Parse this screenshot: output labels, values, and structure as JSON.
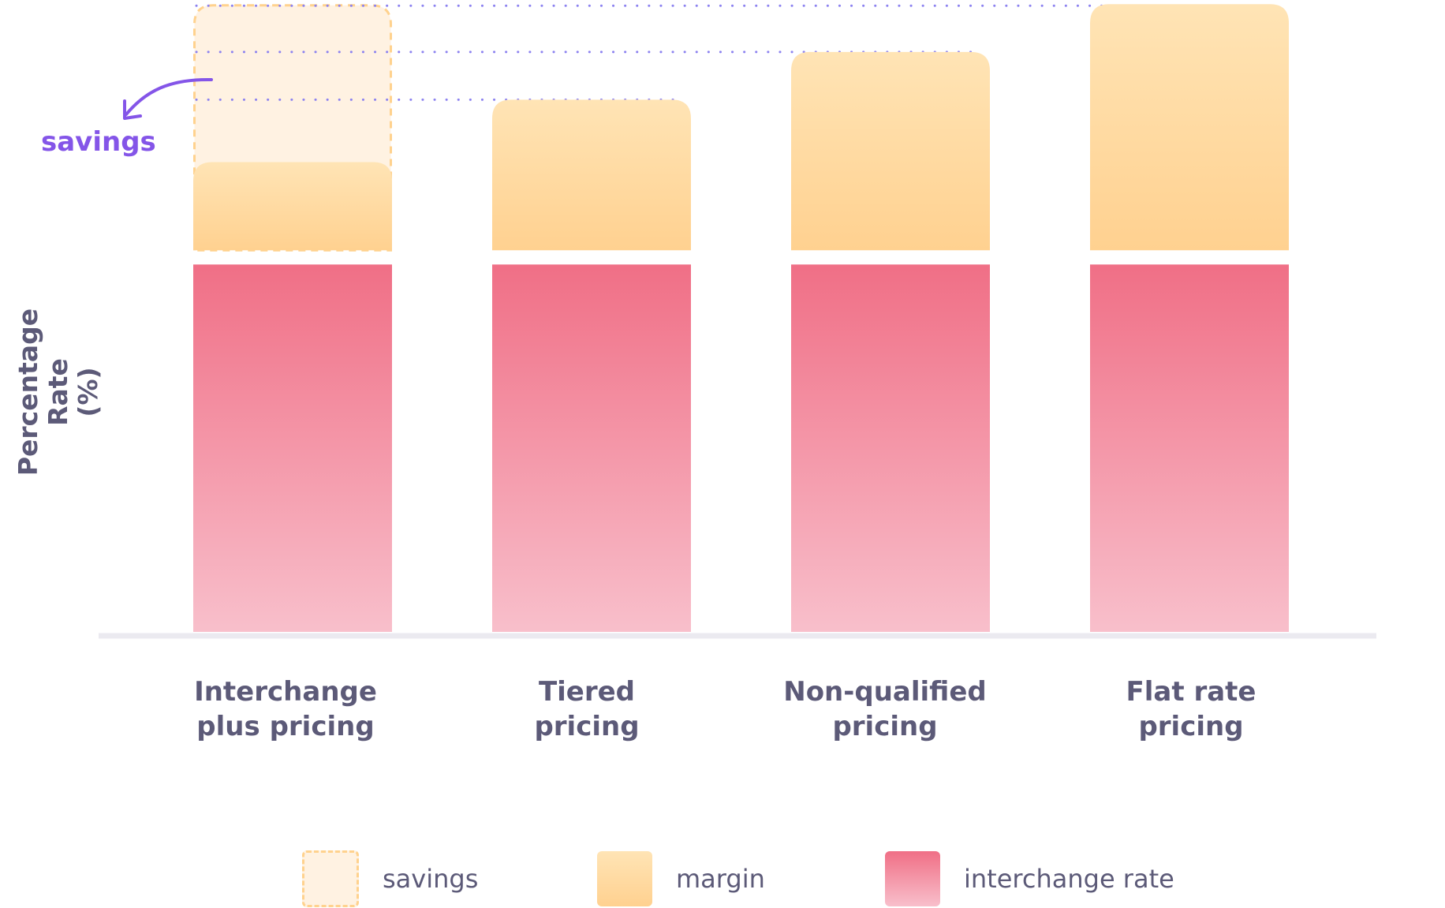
{
  "chart_data": {
    "type": "bar",
    "stacked": true,
    "title": "",
    "xlabel": "",
    "ylabel_lines": [
      "Percentage Rate",
      "(%)"
    ],
    "categories": [
      [
        "Interchange",
        "plus pricing"
      ],
      [
        "Tiered",
        "pricing"
      ],
      [
        "Non-qualified",
        "pricing"
      ],
      [
        "Flat rate",
        "pricing"
      ]
    ],
    "series": [
      {
        "name": "interchange rate",
        "values": [
          100,
          100,
          100,
          100
        ]
      },
      {
        "name": "margin",
        "values": [
          24,
          41,
          54,
          67
        ]
      },
      {
        "name": "savings",
        "values": [
          43,
          0,
          0,
          0
        ]
      }
    ],
    "ylim": [
      0,
      172
    ],
    "grid": false,
    "legend_placement": "bottom",
    "annotations": {
      "savings_label": "savings"
    },
    "colors": {
      "interchange_top": "#f06f86",
      "interchange_bottom": "#f8bfcb",
      "margin_top": "#ffe4b5",
      "margin_bottom": "#ffd190",
      "savings_fill": "#fff2e2",
      "savings_stroke": "#ffd28e",
      "guide_dots": "#8c82f0",
      "accent": "#8455e8",
      "text": "#5c5a78",
      "axis": "#ebeaf0"
    }
  },
  "legend": {
    "items": [
      {
        "key": "savings",
        "label": "savings"
      },
      {
        "key": "margin",
        "label": "margin"
      },
      {
        "key": "interchange",
        "label": "interchange rate"
      }
    ]
  }
}
